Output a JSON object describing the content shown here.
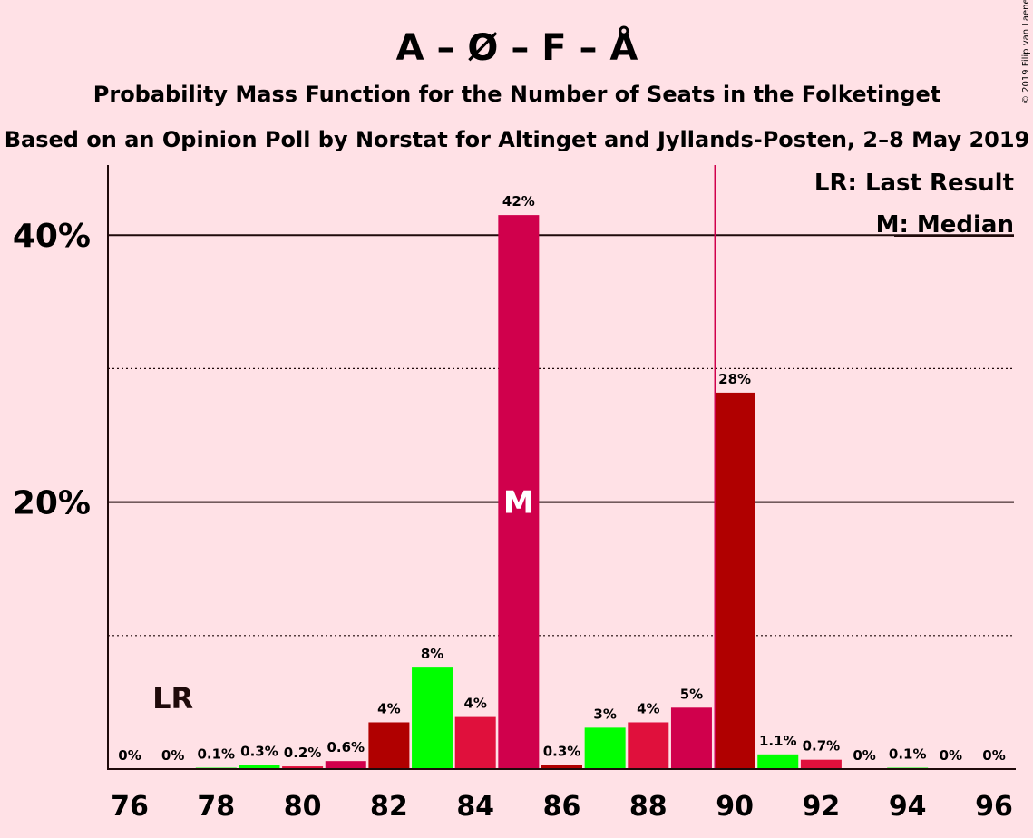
{
  "chart_data": {
    "type": "bar",
    "title": "A – Ø – F – Å",
    "subtitle1": "Probability Mass Function for the Number of Seats in the Folketinget",
    "subtitle2": "Based on an Opinion Poll by Norstat for Altinget and Jyllands-Posten, 2–8 May 2019",
    "copyright": "© 2019 Filip van Laenen",
    "x": [
      76,
      77,
      78,
      79,
      80,
      81,
      82,
      83,
      84,
      85,
      86,
      87,
      88,
      89,
      90,
      91,
      92,
      93,
      94,
      95,
      96
    ],
    "values": [
      0,
      0,
      0.1,
      0.3,
      0.2,
      0.6,
      3.5,
      7.6,
      3.9,
      41.5,
      0.3,
      3.1,
      3.5,
      4.6,
      28.2,
      1.1,
      0.7,
      0,
      0.1,
      0,
      0
    ],
    "labels": [
      "0%",
      "0%",
      "0.1%",
      "0.3%",
      "0.2%",
      "0.6%",
      "4%",
      "8%",
      "4%",
      "42%",
      "0.3%",
      "3%",
      "4%",
      "5%",
      "28%",
      "1.1%",
      "0.7%",
      "0%",
      "0.1%",
      "0%",
      "0%"
    ],
    "colors": [
      "#00ff00",
      "#e0103c",
      "#00ff00",
      "#00ff00",
      "#e0103c",
      "#d0004c",
      "#b00000",
      "#00ff00",
      "#e0103c",
      "#d0004c",
      "#b00000",
      "#00ff00",
      "#e0103c",
      "#d0004c",
      "#b00000",
      "#00ff00",
      "#e0103c",
      "#00ff00",
      "#00ff00",
      "#e0103c",
      "#00ff00"
    ],
    "x_ticks": [
      76,
      78,
      80,
      82,
      84,
      86,
      88,
      90,
      92,
      94,
      96
    ],
    "y_ticks": [
      {
        "value": 20,
        "label": "20%"
      },
      {
        "value": 40,
        "label": "40%"
      }
    ],
    "y_minor_gridlines": [
      10,
      30
    ],
    "ylim": [
      0,
      45
    ],
    "last_result": {
      "seat": 77,
      "label": "LR"
    },
    "median": {
      "seat": 85,
      "label": "M"
    },
    "majority_line": {
      "seat": 89.5,
      "color": "#d0004c"
    },
    "legend": {
      "lr": "LR: Last Result",
      "m": "M: Median",
      "placement": "top-right"
    }
  }
}
